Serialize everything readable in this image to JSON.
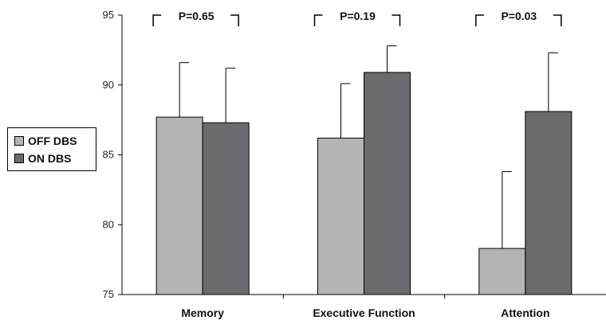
{
  "chart_data": {
    "type": "bar",
    "categories": [
      "Memory",
      "Executive Function",
      "Attention"
    ],
    "series": [
      {
        "name": "OFF DBS",
        "values": [
          87.7,
          86.2,
          78.3
        ],
        "error": [
          3.9,
          3.9,
          5.5
        ],
        "color": "#b3b4b8"
      },
      {
        "name": "ON DBS",
        "values": [
          87.3,
          90.9,
          88.1
        ],
        "error": [
          3.9,
          1.9,
          4.2
        ],
        "color": "#6a6b6f"
      }
    ],
    "annotations": [
      "P=0.65",
      "P=0.19",
      "P=0.03"
    ],
    "yticks": [
      "95",
      "90",
      "85",
      "80",
      "75"
    ],
    "ylim": [
      75,
      95
    ],
    "title": "",
    "xlabel": "",
    "ylabel": "",
    "legend_position": "left",
    "grid": false
  }
}
